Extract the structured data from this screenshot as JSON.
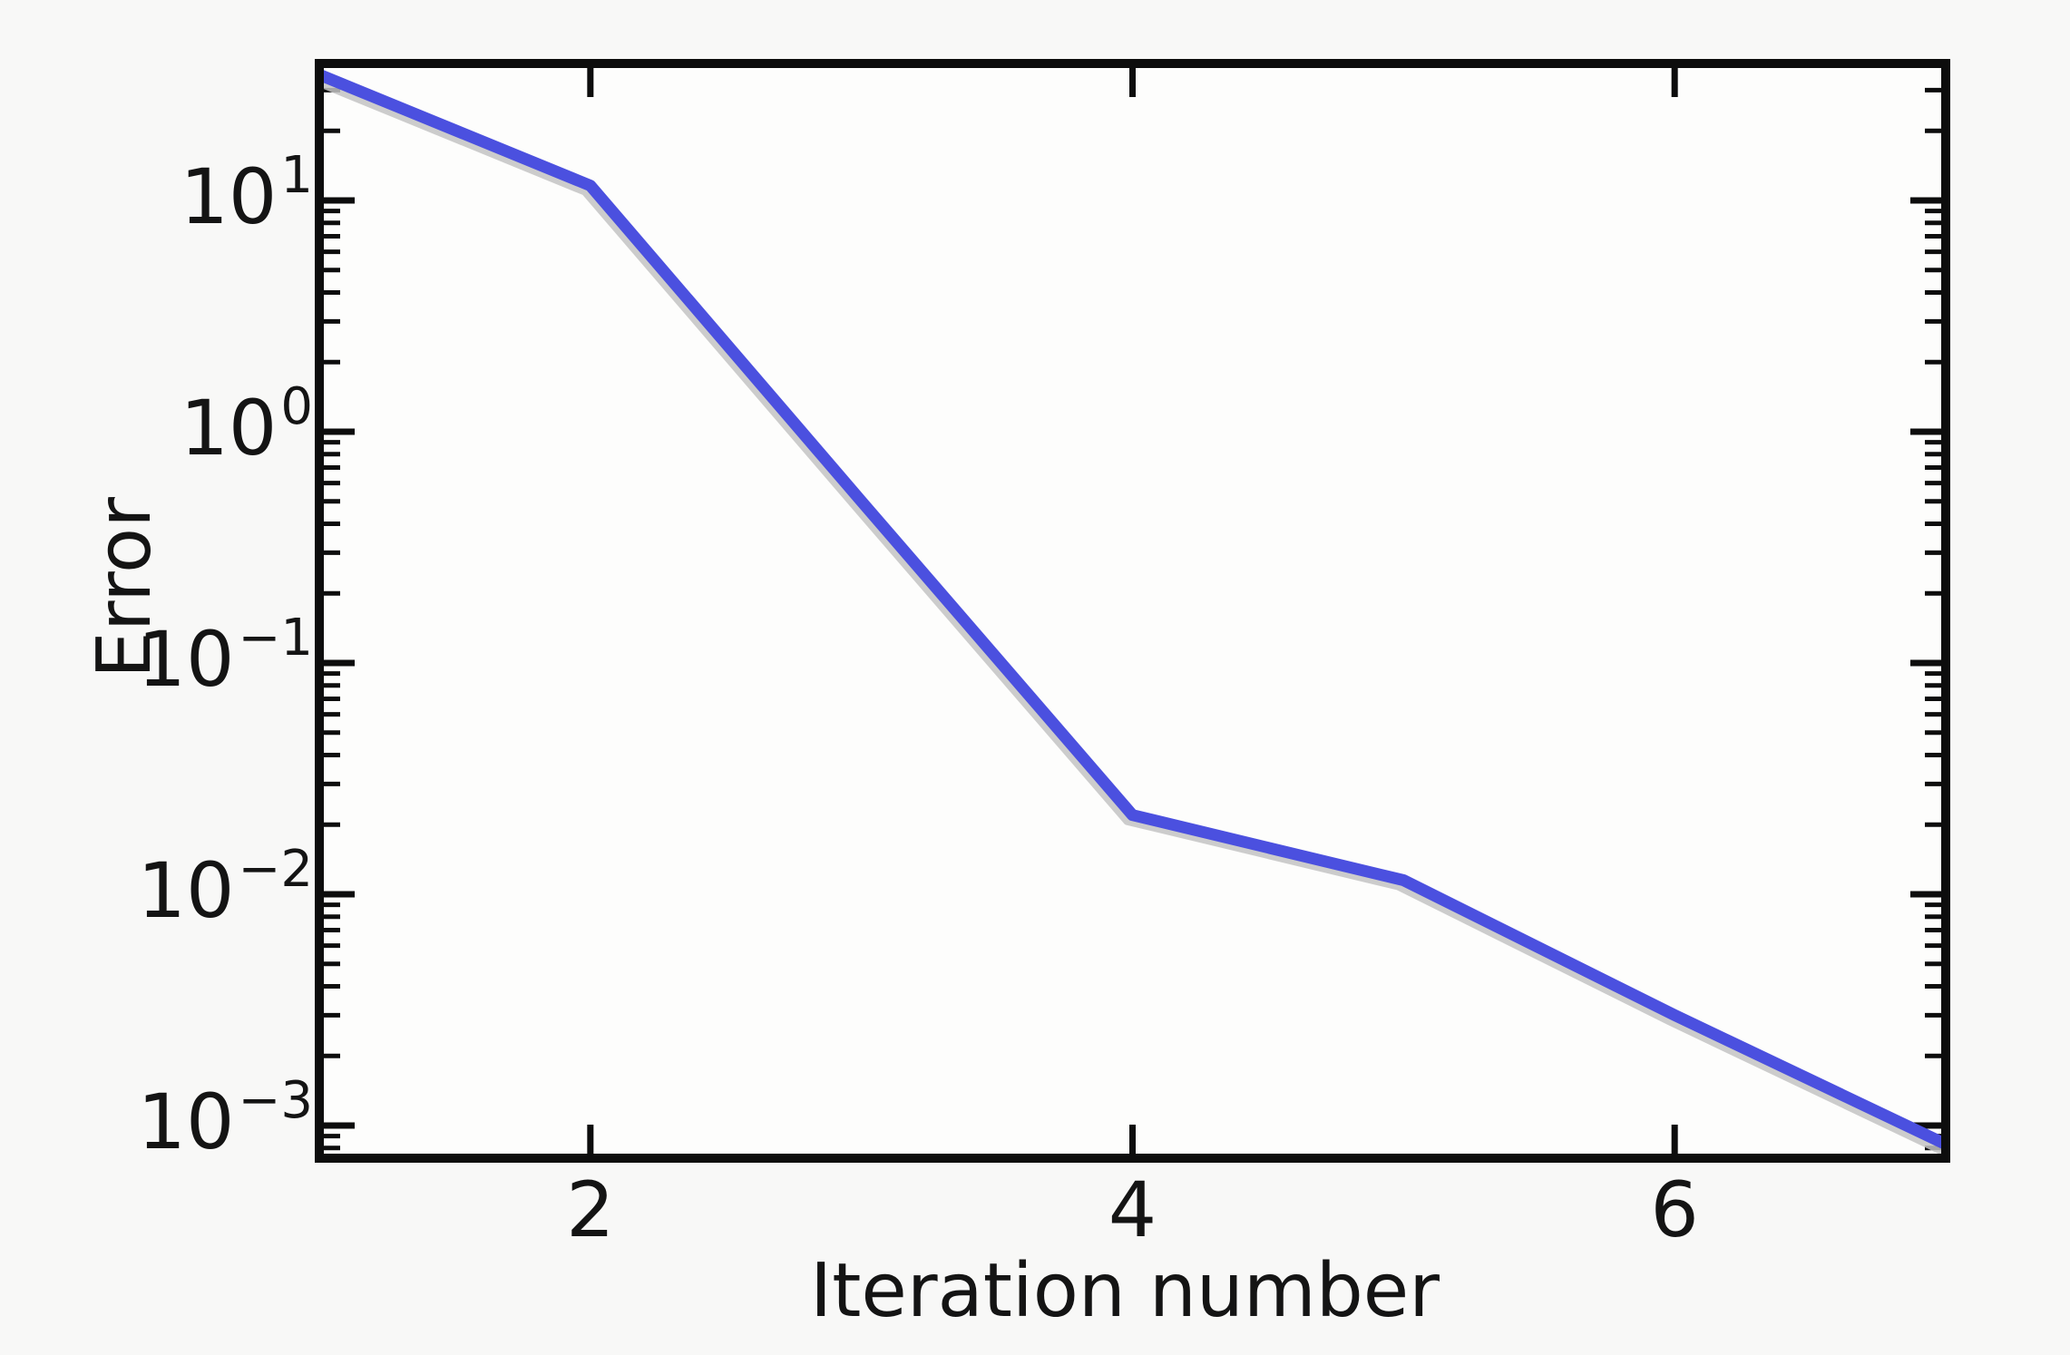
{
  "figure": {
    "background": "#f8f8f7",
    "plot_background": "#fdfdfc",
    "spine_color": "#0d0d0d",
    "tick_color": "#0d0d0d"
  },
  "chart_data": {
    "type": "line",
    "title": "",
    "xlabel": "Iteration number",
    "ylabel": "Error",
    "series": [
      {
        "name": "error",
        "color": "#4b50df",
        "shadow_color": "#c3c3c3",
        "x": [
          1,
          2,
          3,
          4,
          5,
          6,
          7
        ],
        "y": [
          35,
          11.6,
          0.5,
          0.022,
          0.0115,
          0.003,
          0.00083
        ]
      }
    ],
    "x_scale": "linear",
    "y_scale": "log",
    "xlim": [
      1,
      7
    ],
    "ylim": [
      0.0007,
      39
    ],
    "x_ticks": [
      2,
      4,
      6
    ],
    "x_tick_labels": [
      "2",
      "4",
      "6"
    ],
    "y_ticks": [
      10,
      1,
      0.1,
      0.01,
      0.001
    ],
    "y_tick_labels": [
      "10¹",
      "10⁰",
      "10⁻¹",
      "10⁻²",
      "10⁻³"
    ],
    "y_tick_base": "10",
    "y_tick_exponents": [
      "1",
      "0",
      "−1",
      "−2",
      "−3"
    ],
    "grid": false,
    "legend": null
  }
}
